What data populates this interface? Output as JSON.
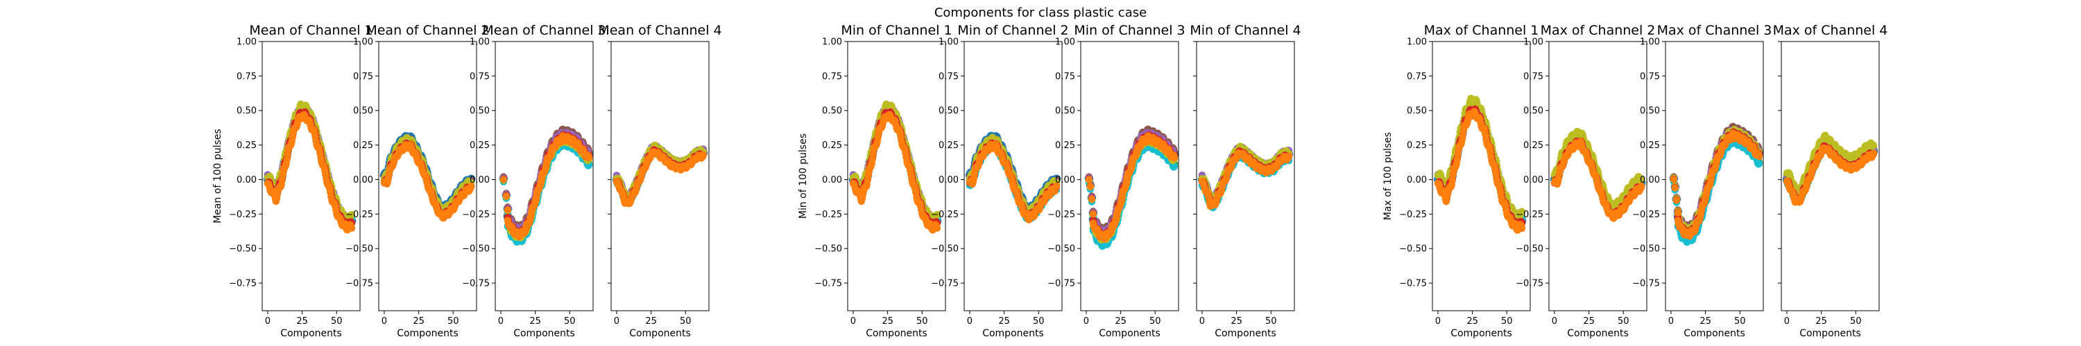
{
  "figure": {
    "suptitle": "Components for class plastic case"
  },
  "colors": {
    "series": [
      "#1f77b4",
      "#8c564b",
      "#9467bd",
      "#2ca02c",
      "#17becf",
      "#bcbd22",
      "#d62728",
      "#ff7f0e"
    ]
  },
  "chart_data": [
    {
      "type": "scatter",
      "group": "mean",
      "title": "Mean of Channel 1",
      "xlabel": "Components",
      "ylabel": "Mean of 100 pulses",
      "xlim": [
        -4,
        67
      ],
      "ylim": [
        -0.95,
        1.0
      ],
      "xticks": [
        0,
        25,
        50
      ],
      "yticks": [
        -0.75,
        -0.5,
        -0.25,
        0.0,
        0.25,
        0.5,
        0.75,
        1.0
      ],
      "ytick_labels": [
        "−0.75",
        "−0.50",
        "−0.25",
        "0.00",
        "0.25",
        "0.50",
        "0.75",
        "1.00"
      ],
      "show_yticklabels": true,
      "curve": [
        [
          0,
          0.0
        ],
        [
          4,
          -0.06
        ],
        [
          6,
          -0.1
        ],
        [
          10,
          0.02
        ],
        [
          15,
          0.24
        ],
        [
          20,
          0.42
        ],
        [
          24,
          0.5
        ],
        [
          28,
          0.49
        ],
        [
          33,
          0.4
        ],
        [
          40,
          0.15
        ],
        [
          46,
          -0.08
        ],
        [
          52,
          -0.25
        ],
        [
          57,
          -0.31
        ],
        [
          61,
          -0.3
        ]
      ],
      "band": 0.05,
      "series_offsets": [
        0.0,
        0.012,
        0.02,
        -0.01,
        0.005,
        0.03,
        -0.02,
        -0.04
      ]
    },
    {
      "type": "scatter",
      "group": "mean",
      "title": "Mean of Channel 2",
      "xlabel": "Components",
      "xlim": [
        -4,
        67
      ],
      "ylim": [
        -0.95,
        1.0
      ],
      "xticks": [
        0,
        25,
        50
      ],
      "yticks": [
        -0.75,
        -0.5,
        -0.25,
        0.0,
        0.25,
        0.5,
        0.75,
        1.0
      ],
      "ytick_labels": [
        "−0.75",
        "−0.50",
        "−0.25",
        "0.00",
        "0.25",
        "0.50",
        "0.75",
        "1.00"
      ],
      "show_yticklabels": true,
      "curve": [
        [
          0,
          0.0
        ],
        [
          2,
          0.01
        ],
        [
          5,
          0.12
        ],
        [
          10,
          0.22
        ],
        [
          15,
          0.27
        ],
        [
          19,
          0.27
        ],
        [
          23,
          0.2
        ],
        [
          28,
          0.1
        ],
        [
          33,
          -0.05
        ],
        [
          38,
          -0.18
        ],
        [
          42,
          -0.24
        ],
        [
          46,
          -0.22
        ],
        [
          50,
          -0.18
        ],
        [
          55,
          -0.1
        ],
        [
          60,
          -0.05
        ],
        [
          63,
          -0.03
        ]
      ],
      "band": 0.04,
      "series_offsets": [
        0.03,
        0.01,
        0.0,
        -0.01,
        0.0,
        0.02,
        -0.02,
        -0.03
      ]
    },
    {
      "type": "scatter",
      "group": "mean",
      "title": "Mean of Channel 3",
      "xlabel": "Components",
      "xlim": [
        -4,
        67
      ],
      "ylim": [
        -0.95,
        1.0
      ],
      "xticks": [
        0,
        25,
        50
      ],
      "yticks": [
        -0.75,
        -0.5,
        -0.25,
        0.0,
        0.25,
        0.5,
        0.75,
        1.0
      ],
      "ytick_labels": [
        "−0.75",
        "−0.50",
        "−0.25",
        "0.00",
        "0.25",
        "0.50",
        "0.75",
        "1.00"
      ],
      "show_yticklabels": true,
      "curve": [
        [
          5,
          -0.3
        ],
        [
          8,
          -0.36
        ],
        [
          12,
          -0.4
        ],
        [
          16,
          -0.39
        ],
        [
          20,
          -0.32
        ],
        [
          25,
          -0.15
        ],
        [
          30,
          0.02
        ],
        [
          35,
          0.17
        ],
        [
          40,
          0.26
        ],
        [
          45,
          0.3
        ],
        [
          50,
          0.29
        ],
        [
          55,
          0.26
        ],
        [
          60,
          0.2
        ],
        [
          64,
          0.15
        ]
      ],
      "outliers": [
        [
          2,
          0.0
        ],
        [
          4,
          -0.12
        ],
        [
          5,
          -0.22
        ]
      ],
      "band": 0.05,
      "series_offsets": [
        0.02,
        0.05,
        0.03,
        -0.02,
        -0.04,
        -0.01,
        0.01,
        0.0
      ]
    },
    {
      "type": "scatter",
      "group": "mean",
      "title": "Mean of Channel 4",
      "xlabel": "Components",
      "xlim": [
        -4,
        67
      ],
      "ylim": [
        -0.95,
        1.0
      ],
      "xticks": [
        0,
        25,
        50
      ],
      "yticks": [
        -0.75,
        -0.5,
        -0.25,
        0.0,
        0.25,
        0.5,
        0.75,
        1.0
      ],
      "ytick_labels": [
        "−0.75",
        "−0.50",
        "−0.25",
        "0.00",
        "0.25",
        "0.50",
        "0.75",
        "1.00"
      ],
      "show_yticklabels": false,
      "curve": [
        [
          0,
          0.0
        ],
        [
          3,
          -0.05
        ],
        [
          6,
          -0.14
        ],
        [
          9,
          -0.15
        ],
        [
          14,
          -0.05
        ],
        [
          20,
          0.1
        ],
        [
          25,
          0.2
        ],
        [
          28,
          0.22
        ],
        [
          33,
          0.18
        ],
        [
          40,
          0.12
        ],
        [
          46,
          0.1
        ],
        [
          52,
          0.12
        ],
        [
          58,
          0.18
        ],
        [
          63,
          0.19
        ]
      ],
      "band": 0.035,
      "series_offsets": [
        0.0,
        0.01,
        0.02,
        -0.01,
        0.0,
        0.02,
        -0.01,
        -0.02
      ]
    },
    {
      "type": "scatter",
      "group": "min",
      "title": "Min of Channel 1",
      "xlabel": "Components",
      "ylabel": "Min of 100 pulses",
      "xlim": [
        -4,
        67
      ],
      "ylim": [
        -0.95,
        1.0
      ],
      "xticks": [
        0,
        25,
        50
      ],
      "yticks": [
        -0.75,
        -0.5,
        -0.25,
        0.0,
        0.25,
        0.5,
        0.75,
        1.0
      ],
      "ytick_labels": [
        "−0.75",
        "−0.50",
        "−0.25",
        "0.00",
        "0.25",
        "0.50",
        "0.75",
        "1.00"
      ],
      "show_yticklabels": true,
      "curve": [
        [
          0,
          0.0
        ],
        [
          4,
          -0.06
        ],
        [
          6,
          -0.1
        ],
        [
          10,
          0.02
        ],
        [
          15,
          0.24
        ],
        [
          20,
          0.42
        ],
        [
          24,
          0.5
        ],
        [
          28,
          0.49
        ],
        [
          33,
          0.4
        ],
        [
          40,
          0.15
        ],
        [
          46,
          -0.08
        ],
        [
          52,
          -0.25
        ],
        [
          57,
          -0.31
        ],
        [
          61,
          -0.3
        ]
      ],
      "band": 0.05,
      "series_offsets": [
        0.0,
        0.012,
        0.02,
        -0.01,
        0.005,
        0.03,
        -0.02,
        -0.04
      ]
    },
    {
      "type": "scatter",
      "group": "min",
      "title": "Min of Channel 2",
      "xlabel": "Components",
      "xlim": [
        -4,
        67
      ],
      "ylim": [
        -0.95,
        1.0
      ],
      "xticks": [
        0,
        25,
        50
      ],
      "yticks": [
        -0.75,
        -0.5,
        -0.25,
        0.0,
        0.25,
        0.5,
        0.75,
        1.0
      ],
      "ytick_labels": [
        "−0.75",
        "−0.50",
        "−0.25",
        "0.00",
        "0.25",
        "0.50",
        "0.75",
        "1.00"
      ],
      "show_yticklabels": true,
      "curve": [
        [
          0,
          0.0
        ],
        [
          2,
          0.01
        ],
        [
          5,
          0.12
        ],
        [
          10,
          0.22
        ],
        [
          15,
          0.27
        ],
        [
          19,
          0.27
        ],
        [
          23,
          0.2
        ],
        [
          28,
          0.1
        ],
        [
          33,
          -0.05
        ],
        [
          38,
          -0.18
        ],
        [
          42,
          -0.25
        ],
        [
          46,
          -0.23
        ],
        [
          50,
          -0.18
        ],
        [
          55,
          -0.1
        ],
        [
          60,
          -0.05
        ],
        [
          63,
          -0.03
        ]
      ],
      "band": 0.045,
      "series_offsets": [
        0.03,
        0.01,
        0.0,
        -0.01,
        -0.03,
        0.02,
        -0.02,
        -0.03
      ]
    },
    {
      "type": "scatter",
      "group": "min",
      "title": "Min of Channel 3",
      "xlabel": "Components",
      "xlim": [
        -4,
        67
      ],
      "ylim": [
        -0.95,
        1.0
      ],
      "xticks": [
        0,
        25,
        50
      ],
      "yticks": [
        -0.75,
        -0.5,
        -0.25,
        0.0,
        0.25,
        0.5,
        0.75,
        1.0
      ],
      "ytick_labels": [
        "−0.75",
        "−0.50",
        "−0.25",
        "0.00",
        "0.25",
        "0.50",
        "0.75",
        "1.00"
      ],
      "show_yticklabels": true,
      "curve": [
        [
          5,
          -0.32
        ],
        [
          8,
          -0.38
        ],
        [
          12,
          -0.42
        ],
        [
          16,
          -0.4
        ],
        [
          20,
          -0.33
        ],
        [
          25,
          -0.16
        ],
        [
          30,
          0.02
        ],
        [
          35,
          0.17
        ],
        [
          40,
          0.27
        ],
        [
          45,
          0.3
        ],
        [
          50,
          0.28
        ],
        [
          55,
          0.25
        ],
        [
          60,
          0.2
        ],
        [
          64,
          0.15
        ]
      ],
      "outliers": [
        [
          2,
          0.0
        ],
        [
          3,
          -0.05
        ],
        [
          4,
          -0.14
        ],
        [
          5,
          -0.25
        ]
      ],
      "band": 0.05,
      "series_offsets": [
        0.02,
        0.05,
        0.03,
        -0.02,
        -0.05,
        -0.01,
        0.01,
        0.0
      ]
    },
    {
      "type": "scatter",
      "group": "min",
      "title": "Min of Channel 4",
      "xlabel": "Components",
      "xlim": [
        -4,
        67
      ],
      "ylim": [
        -0.95,
        1.0
      ],
      "xticks": [
        0,
        25,
        50
      ],
      "yticks": [
        -0.75,
        -0.5,
        -0.25,
        0.0,
        0.25,
        0.5,
        0.75,
        1.0
      ],
      "ytick_labels": [
        "−0.75",
        "−0.50",
        "−0.25",
        "0.00",
        "0.25",
        "0.50",
        "0.75",
        "1.00"
      ],
      "show_yticklabels": false,
      "curve": [
        [
          0,
          0.0
        ],
        [
          3,
          -0.06
        ],
        [
          6,
          -0.16
        ],
        [
          9,
          -0.16
        ],
        [
          14,
          -0.05
        ],
        [
          20,
          0.1
        ],
        [
          25,
          0.19
        ],
        [
          28,
          0.21
        ],
        [
          33,
          0.17
        ],
        [
          40,
          0.11
        ],
        [
          46,
          0.08
        ],
        [
          52,
          0.1
        ],
        [
          58,
          0.17
        ],
        [
          63,
          0.18
        ]
      ],
      "band": 0.04,
      "series_offsets": [
        0.0,
        0.01,
        0.02,
        -0.01,
        -0.03,
        0.02,
        -0.01,
        -0.02
      ]
    },
    {
      "type": "scatter",
      "group": "max",
      "title": "Max of Channel 1",
      "xlabel": "Components",
      "ylabel": "Max of 100 pulses",
      "xlim": [
        -4,
        67
      ],
      "ylim": [
        -0.95,
        1.0
      ],
      "xticks": [
        0,
        25,
        50
      ],
      "yticks": [
        -0.75,
        -0.5,
        -0.25,
        0.0,
        0.25,
        0.5,
        0.75,
        1.0
      ],
      "ytick_labels": [
        "−0.75",
        "−0.50",
        "−0.25",
        "0.00",
        "0.25",
        "0.50",
        "0.75",
        "1.00"
      ],
      "show_yticklabels": true,
      "curve": [
        [
          0,
          0.0
        ],
        [
          4,
          -0.06
        ],
        [
          6,
          -0.1
        ],
        [
          10,
          0.02
        ],
        [
          15,
          0.24
        ],
        [
          20,
          0.44
        ],
        [
          24,
          0.52
        ],
        [
          28,
          0.51
        ],
        [
          33,
          0.41
        ],
        [
          40,
          0.16
        ],
        [
          46,
          -0.08
        ],
        [
          52,
          -0.25
        ],
        [
          57,
          -0.31
        ],
        [
          61,
          -0.3
        ]
      ],
      "band": 0.055,
      "series_offsets": [
        0.0,
        0.012,
        0.02,
        -0.01,
        0.005,
        0.05,
        -0.02,
        -0.04
      ]
    },
    {
      "type": "scatter",
      "group": "max",
      "title": "Max of Channel 2",
      "xlabel": "Components",
      "xlim": [
        -4,
        67
      ],
      "ylim": [
        -0.95,
        1.0
      ],
      "xticks": [
        0,
        25,
        50
      ],
      "yticks": [
        -0.75,
        -0.5,
        -0.25,
        0.0,
        0.25,
        0.5,
        0.75,
        1.0
      ],
      "ytick_labels": [
        "−0.75",
        "−0.50",
        "−0.25",
        "0.00",
        "0.25",
        "0.50",
        "0.75",
        "1.00"
      ],
      "show_yticklabels": true,
      "curve": [
        [
          0,
          0.0
        ],
        [
          2,
          0.01
        ],
        [
          5,
          0.12
        ],
        [
          10,
          0.23
        ],
        [
          15,
          0.28
        ],
        [
          19,
          0.29
        ],
        [
          23,
          0.21
        ],
        [
          28,
          0.1
        ],
        [
          33,
          -0.05
        ],
        [
          38,
          -0.18
        ],
        [
          42,
          -0.24
        ],
        [
          46,
          -0.22
        ],
        [
          50,
          -0.18
        ],
        [
          55,
          -0.1
        ],
        [
          60,
          -0.05
        ],
        [
          63,
          -0.03
        ]
      ],
      "band": 0.045,
      "series_offsets": [
        0.0,
        0.01,
        0.02,
        -0.01,
        0.0,
        0.05,
        -0.02,
        -0.03
      ]
    },
    {
      "type": "scatter",
      "group": "max",
      "title": "Max of Channel 3",
      "xlabel": "Components",
      "xlim": [
        -4,
        67
      ],
      "ylim": [
        -0.95,
        1.0
      ],
      "xticks": [
        0,
        25,
        50
      ],
      "yticks": [
        -0.75,
        -0.5,
        -0.25,
        0.0,
        0.25,
        0.5,
        0.75,
        1.0
      ],
      "ytick_labels": [
        "−0.75",
        "−0.50",
        "−0.25",
        "0.00",
        "0.25",
        "0.50",
        "0.75",
        "1.00"
      ],
      "show_yticklabels": true,
      "curve": [
        [
          5,
          -0.3
        ],
        [
          8,
          -0.37
        ],
        [
          12,
          -0.4
        ],
        [
          16,
          -0.38
        ],
        [
          20,
          -0.3
        ],
        [
          25,
          -0.13
        ],
        [
          30,
          0.04
        ],
        [
          35,
          0.18
        ],
        [
          40,
          0.28
        ],
        [
          45,
          0.32
        ],
        [
          50,
          0.3
        ],
        [
          55,
          0.27
        ],
        [
          60,
          0.22
        ],
        [
          64,
          0.16
        ]
      ],
      "outliers": [
        [
          2,
          0.0
        ],
        [
          3,
          -0.06
        ],
        [
          4,
          -0.15
        ],
        [
          5,
          -0.24
        ]
      ],
      "band": 0.05,
      "series_offsets": [
        0.02,
        0.05,
        0.03,
        -0.02,
        -0.04,
        0.03,
        0.01,
        0.0
      ]
    },
    {
      "type": "scatter",
      "group": "max",
      "title": "Max of Channel 4",
      "xlabel": "Components",
      "xlim": [
        -4,
        67
      ],
      "ylim": [
        -0.95,
        1.0
      ],
      "xticks": [
        0,
        25,
        50
      ],
      "yticks": [
        -0.75,
        -0.5,
        -0.25,
        0.0,
        0.25,
        0.5,
        0.75,
        1.0
      ],
      "ytick_labels": [
        "−0.75",
        "−0.50",
        "−0.25",
        "0.00",
        "0.25",
        "0.50",
        "0.75",
        "1.00"
      ],
      "show_yticklabels": false,
      "curve": [
        [
          0,
          0.0
        ],
        [
          3,
          -0.05
        ],
        [
          6,
          -0.13
        ],
        [
          9,
          -0.14
        ],
        [
          14,
          -0.03
        ],
        [
          20,
          0.12
        ],
        [
          25,
          0.22
        ],
        [
          28,
          0.25
        ],
        [
          33,
          0.2
        ],
        [
          40,
          0.13
        ],
        [
          46,
          0.1
        ],
        [
          52,
          0.12
        ],
        [
          58,
          0.18
        ],
        [
          63,
          0.2
        ]
      ],
      "band": 0.04,
      "series_offsets": [
        0.0,
        0.01,
        0.02,
        -0.01,
        0.0,
        0.06,
        -0.01,
        -0.02
      ]
    }
  ]
}
